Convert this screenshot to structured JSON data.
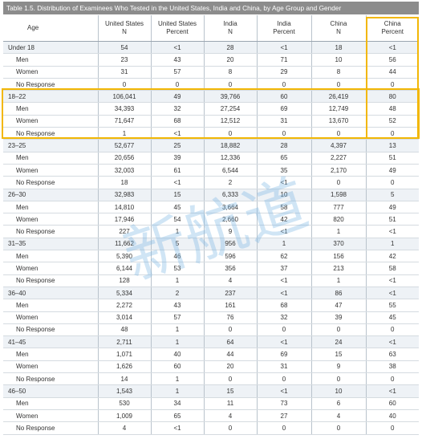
{
  "title": "Table 1.5. Distribution of Examinees Who Tested in the United States, India and China, by Age Group and Gender",
  "header": {
    "columns": [
      [
        "Age"
      ],
      [
        "United States",
        "N"
      ],
      [
        "United States",
        "Percent"
      ],
      [
        "India",
        "N"
      ],
      [
        "India",
        "Percent"
      ],
      [
        "China",
        "N"
      ],
      [
        "China",
        "Percent"
      ]
    ]
  },
  "rows": [
    [
      "Under 18",
      "54",
      "<1",
      "28",
      "<1",
      "18",
      "<1"
    ],
    [
      "Men",
      "23",
      "43",
      "20",
      "71",
      "10",
      "56"
    ],
    [
      "Women",
      "31",
      "57",
      "8",
      "29",
      "8",
      "44"
    ],
    [
      "No Response",
      "0",
      "0",
      "0",
      "0",
      "0",
      "0"
    ],
    [
      "18–22",
      "106,041",
      "49",
      "39,766",
      "60",
      "26,419",
      "80"
    ],
    [
      "Men",
      "34,393",
      "32",
      "27,254",
      "69",
      "12,749",
      "48"
    ],
    [
      "Women",
      "71,647",
      "68",
      "12,512",
      "31",
      "13,670",
      "52"
    ],
    [
      "No Response",
      "1",
      "<1",
      "0",
      "0",
      "0",
      "0"
    ],
    [
      "23–25",
      "52,677",
      "25",
      "18,882",
      "28",
      "4,397",
      "13"
    ],
    [
      "Men",
      "20,656",
      "39",
      "12,336",
      "65",
      "2,227",
      "51"
    ],
    [
      "Women",
      "32,003",
      "61",
      "6,544",
      "35",
      "2,170",
      "49"
    ],
    [
      "No Response",
      "18",
      "<1",
      "2",
      "<1",
      "0",
      "0"
    ],
    [
      "26–30",
      "32,983",
      "15",
      "6,333",
      "10",
      "1,598",
      "5"
    ],
    [
      "Men",
      "14,810",
      "45",
      "3,664",
      "58",
      "777",
      "49"
    ],
    [
      "Women",
      "17,946",
      "54",
      "2,660",
      "42",
      "820",
      "51"
    ],
    [
      "No Response",
      "227",
      "1",
      "9",
      "<1",
      "1",
      "<1"
    ],
    [
      "31–35",
      "11,662",
      "5",
      "956",
      "1",
      "370",
      "1"
    ],
    [
      "Men",
      "5,390",
      "46",
      "596",
      "62",
      "156",
      "42"
    ],
    [
      "Women",
      "6,144",
      "53",
      "356",
      "37",
      "213",
      "58"
    ],
    [
      "No Response",
      "128",
      "1",
      "4",
      "<1",
      "1",
      "<1"
    ],
    [
      "36–40",
      "5,334",
      "2",
      "237",
      "<1",
      "86",
      "<1"
    ],
    [
      "Men",
      "2,272",
      "43",
      "161",
      "68",
      "47",
      "55"
    ],
    [
      "Women",
      "3,014",
      "57",
      "76",
      "32",
      "39",
      "45"
    ],
    [
      "No Response",
      "48",
      "1",
      "0",
      "0",
      "0",
      "0"
    ],
    [
      "41–45",
      "2,711",
      "1",
      "64",
      "<1",
      "24",
      "<1"
    ],
    [
      "Men",
      "1,071",
      "40",
      "44",
      "69",
      "15",
      "63"
    ],
    [
      "Women",
      "1,626",
      "60",
      "20",
      "31",
      "9",
      "38"
    ],
    [
      "No Response",
      "14",
      "1",
      "0",
      "0",
      "0",
      "0"
    ],
    [
      "46–50",
      "1,543",
      "1",
      "15",
      "<1",
      "10",
      "<1"
    ],
    [
      "Men",
      "530",
      "34",
      "11",
      "73",
      "6",
      "60"
    ],
    [
      "Women",
      "1,009",
      "65",
      "4",
      "27",
      "4",
      "40"
    ],
    [
      "No Response",
      "4",
      "<1",
      "0",
      "0",
      "0",
      "0"
    ]
  ],
  "watermark": "新航道"
}
